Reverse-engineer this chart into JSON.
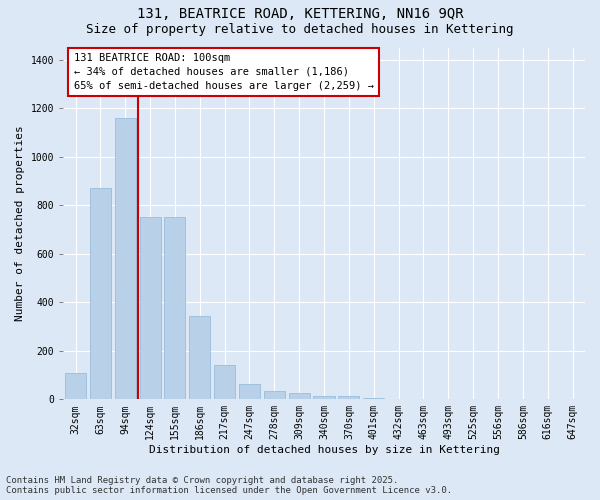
{
  "title": "131, BEATRICE ROAD, KETTERING, NN16 9QR",
  "subtitle": "Size of property relative to detached houses in Kettering",
  "xlabel": "Distribution of detached houses by size in Kettering",
  "ylabel": "Number of detached properties",
  "categories": [
    "32sqm",
    "63sqm",
    "94sqm",
    "124sqm",
    "155sqm",
    "186sqm",
    "217sqm",
    "247sqm",
    "278sqm",
    "309sqm",
    "340sqm",
    "370sqm",
    "401sqm",
    "432sqm",
    "463sqm",
    "493sqm",
    "525sqm",
    "556sqm",
    "586sqm",
    "616sqm",
    "647sqm"
  ],
  "values": [
    110,
    870,
    1160,
    750,
    750,
    345,
    140,
    65,
    35,
    25,
    15,
    15,
    5,
    0,
    0,
    0,
    0,
    0,
    0,
    0,
    0
  ],
  "bar_color": "#b8d0e8",
  "bar_edge_color": "#90b8d8",
  "vline_color": "#cc0000",
  "annotation_box_text": "131 BEATRICE ROAD: 100sqm\n← 34% of detached houses are smaller (1,186)\n65% of semi-detached houses are larger (2,259) →",
  "annotation_box_color": "#cc0000",
  "annotation_box_bg": "#ffffff",
  "ylim": [
    0,
    1450
  ],
  "yticks": [
    0,
    200,
    400,
    600,
    800,
    1000,
    1200,
    1400
  ],
  "bg_color": "#dce8f5",
  "plot_bg_color": "#dce8f5",
  "grid_color": "#ffffff",
  "footer_line1": "Contains HM Land Registry data © Crown copyright and database right 2025.",
  "footer_line2": "Contains public sector information licensed under the Open Government Licence v3.0.",
  "title_fontsize": 10,
  "subtitle_fontsize": 9,
  "annotation_fontsize": 7.5,
  "axis_label_fontsize": 8,
  "tick_fontsize": 7,
  "footer_fontsize": 6.5
}
